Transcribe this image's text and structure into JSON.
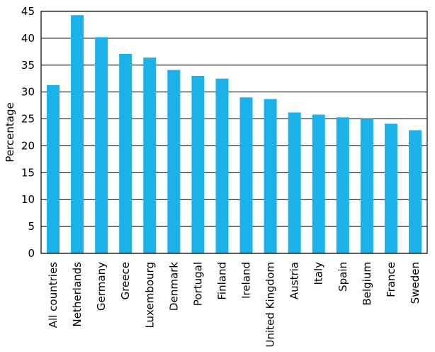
{
  "chart_data": {
    "type": "bar",
    "title": "",
    "xlabel": "",
    "ylabel": "Percentage",
    "ylim": [
      0,
      45
    ],
    "yticks": [
      0,
      5,
      10,
      15,
      20,
      25,
      30,
      35,
      40,
      45
    ],
    "grid": true,
    "bar_color": "#1ab2e8",
    "categories": [
      "All countries",
      "Netherlands",
      "Germany",
      "Greece",
      "Luxembourg",
      "Denmark",
      "Portugal",
      "Finland",
      "Ireland",
      "United Kingdom",
      "Austria",
      "Italy",
      "Spain",
      "Belgium",
      "France",
      "Sweden"
    ],
    "values": [
      31.3,
      44.3,
      40.2,
      37.1,
      36.4,
      34.1,
      33.0,
      32.5,
      29.0,
      28.7,
      26.2,
      25.8,
      25.3,
      25.0,
      24.1,
      22.9
    ]
  }
}
